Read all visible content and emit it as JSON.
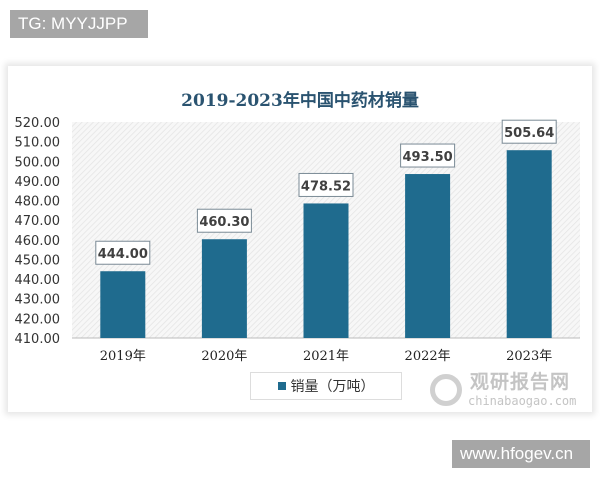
{
  "tags": {
    "top": "TG: MYYJJPP",
    "bottom": "www.hfogev.cn"
  },
  "watermark": {
    "cn": "观研报告网",
    "en": "chinabaogao.com"
  },
  "colors": {
    "bar": "#1f6b8e",
    "title": "#2a5370"
  },
  "chart_data": {
    "type": "bar",
    "title": "2019-2023年中国中药材销量",
    "categories": [
      "2019年",
      "2020年",
      "2021年",
      "2022年",
      "2023年"
    ],
    "series": [
      {
        "name": "销量（万吨）",
        "values": [
          444.0,
          460.3,
          478.52,
          493.5,
          505.64
        ]
      }
    ],
    "value_labels": [
      "444.00",
      "460.30",
      "478.52",
      "493.50",
      "505.64"
    ],
    "yticks": [
      "410.00",
      "420.00",
      "430.00",
      "440.00",
      "450.00",
      "460.00",
      "470.00",
      "480.00",
      "490.00",
      "500.00",
      "510.00",
      "520.00"
    ],
    "ylim": [
      410,
      520
    ],
    "xlabel": "",
    "ylabel": "",
    "legend": "bottom-center"
  }
}
